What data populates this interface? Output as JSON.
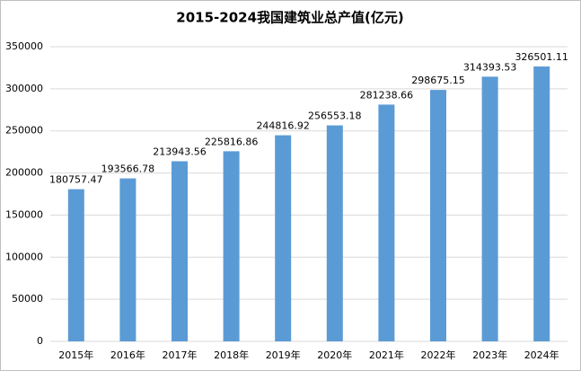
{
  "chart_data": {
    "type": "bar",
    "title": "2015-2024我国建筑业总产值(亿元)",
    "categories": [
      "2015年",
      "2016年",
      "2017年",
      "2018年",
      "2019年",
      "2020年",
      "2021年",
      "2022年",
      "2023年",
      "2024年"
    ],
    "values": [
      180757.47,
      193566.78,
      213943.56,
      225816.86,
      244816.92,
      256553.18,
      281238.66,
      298675.15,
      314393.53,
      326501.11
    ],
    "color": "#5b9bd5",
    "ylim": [
      0,
      350000
    ],
    "yticks": [
      0,
      50000,
      100000,
      150000,
      200000,
      250000,
      300000,
      350000
    ],
    "grid": true
  }
}
